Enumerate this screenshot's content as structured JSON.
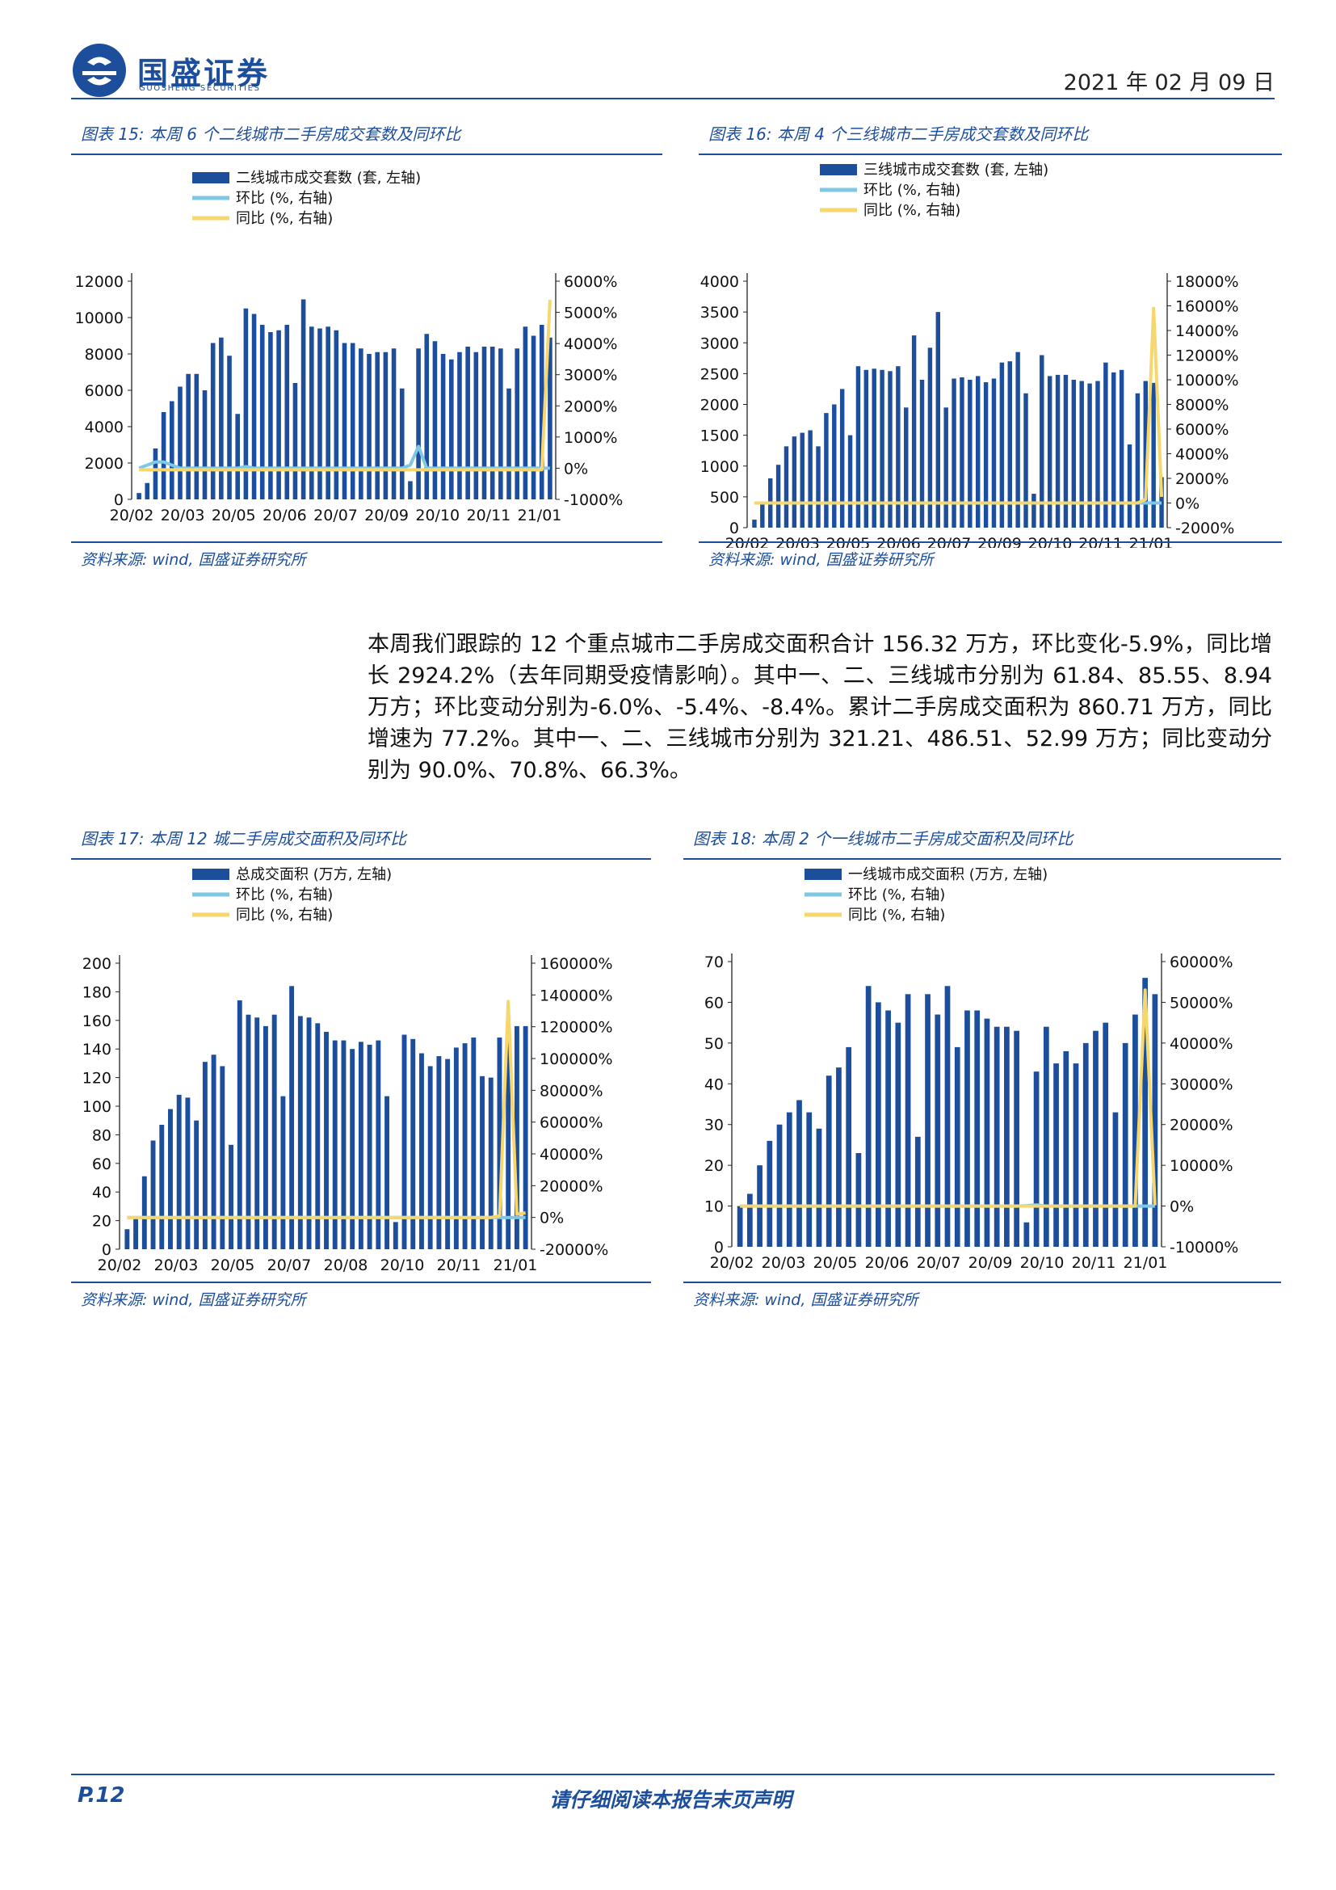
{
  "header": {
    "logo_cn": "国盛证券",
    "logo_en": "GUOSHENG SECURITIES",
    "date": "2021 年 02 月 09 日"
  },
  "colors": {
    "brand": "#1c4e9c",
    "bar": "#1c4e9c",
    "mom_line": "#7ec8e3",
    "yoy_line": "#f5d76e"
  },
  "charts": [
    {
      "title": "图表 15:  本周 6 个二线城市二手房成交套数及同环比",
      "source": "资料来源: wind, 国盛证券研究所",
      "chart_data": {
        "type": "bar",
        "series": [
          {
            "name": "二线城市成交套数 (套, 左轴)",
            "type": "bar",
            "axis": "left",
            "values": [
              350,
              900,
              2800,
              4800,
              5400,
              6200,
              6900,
              6900,
              6000,
              8600,
              8900,
              7900,
              4700,
              10500,
              10200,
              9600,
              9200,
              9300,
              9600,
              6400,
              11000,
              9500,
              9400,
              9500,
              9300,
              8600,
              8600,
              8300,
              8000,
              8100,
              8100,
              8300,
              6100,
              1000,
              8300,
              9100,
              8700,
              8000,
              7700,
              8100,
              8400,
              8100,
              8400,
              8400,
              8300,
              6100,
              8300,
              9500,
              9000,
              9600,
              8900
            ],
            "style_color": "#1c4e9c"
          },
          {
            "name": "环比 (%, 右轴)",
            "type": "line",
            "axis": "right",
            "values": [
              0,
              100,
              200,
              200,
              100,
              0,
              0,
              0,
              0,
              0,
              0,
              0,
              0,
              50,
              0,
              0,
              0,
              0,
              0,
              0,
              0,
              0,
              0,
              0,
              0,
              0,
              0,
              0,
              0,
              0,
              0,
              0,
              0,
              100,
              700,
              0,
              0,
              0,
              0,
              0,
              0,
              0,
              0,
              0,
              0,
              0,
              0,
              0,
              0,
              0,
              0
            ]
          },
          {
            "name": "同比 (%, 右轴)",
            "type": "line",
            "axis": "right",
            "values": [
              -50,
              -50,
              -50,
              -50,
              -50,
              -50,
              -50,
              -50,
              -50,
              -50,
              -50,
              -50,
              -50,
              -50,
              -50,
              -50,
              -50,
              -50,
              -50,
              -50,
              -50,
              -50,
              -50,
              -50,
              -50,
              -50,
              -50,
              -50,
              -50,
              -50,
              -50,
              -50,
              -50,
              -50,
              -50,
              -50,
              -50,
              -50,
              -50,
              -50,
              -50,
              -50,
              -50,
              -50,
              -50,
              -50,
              -50,
              -50,
              -50,
              -50,
              5400
            ]
          }
        ],
        "x_labels": [
          "20/02",
          "20/03",
          "20/05",
          "20/06",
          "20/07",
          "20/09",
          "20/10",
          "20/11",
          "21/01"
        ],
        "left_ticks": [
          "12000",
          "10000",
          "8000",
          "6000",
          "4000",
          "2000",
          "0"
        ],
        "right_ticks": [
          "6000%",
          "5000%",
          "4000%",
          "3000%",
          "2000%",
          "1000%",
          "0%",
          "-1000%"
        ],
        "ylim_left": [
          0,
          12000
        ],
        "ylim_right": [
          -1000,
          6000
        ]
      }
    },
    {
      "title": "图表 16:  本周 4 个三线城市二手房成交套数及同环比",
      "source": "资料来源: wind, 国盛证券研究所",
      "chart_data": {
        "type": "bar",
        "series": [
          {
            "name": "三线城市成交套数 (套, 左轴)",
            "type": "bar",
            "axis": "left",
            "values": [
              130,
              380,
              800,
              1020,
              1320,
              1480,
              1540,
              1580,
              1320,
              1860,
              2000,
              2250,
              1500,
              2620,
              2560,
              2580,
              2560,
              2540,
              2620,
              1950,
              3120,
              2400,
              2920,
              3500,
              1950,
              2420,
              2440,
              2400,
              2460,
              2360,
              2420,
              2680,
              2700,
              2850,
              2180,
              550,
              2800,
              2460,
              2480,
              2480,
              2400,
              2380,
              2340,
              2380,
              2680,
              2520,
              2560,
              1350,
              2180,
              2380,
              2350,
              820
            ],
            "style_color": "#1c4e9c"
          },
          {
            "name": "环比 (%, 右轴)",
            "type": "line",
            "axis": "right",
            "values": [
              0,
              0,
              0,
              0,
              0,
              0,
              0,
              0,
              0,
              0,
              0,
              0,
              0,
              0,
              0,
              0,
              0,
              0,
              0,
              0,
              0,
              0,
              0,
              0,
              0,
              0,
              0,
              0,
              0,
              0,
              0,
              0,
              0,
              0,
              0,
              0,
              0,
              0,
              0,
              0,
              0,
              0,
              0,
              0,
              0,
              0,
              0,
              0,
              0,
              0,
              0,
              0
            ]
          },
          {
            "name": "同比 (%, 右轴)",
            "type": "line",
            "axis": "right",
            "values": [
              0,
              0,
              0,
              0,
              0,
              0,
              0,
              0,
              0,
              0,
              0,
              0,
              0,
              0,
              0,
              0,
              0,
              0,
              0,
              0,
              0,
              0,
              0,
              0,
              0,
              0,
              0,
              0,
              0,
              0,
              0,
              0,
              0,
              0,
              0,
              0,
              0,
              0,
              0,
              0,
              0,
              0,
              0,
              0,
              0,
              0,
              0,
              0,
              0,
              300,
              15800,
              500
            ]
          }
        ],
        "x_labels": [
          "20/02",
          "20/03",
          "20/05",
          "20/06",
          "20/07",
          "20/09",
          "20/10",
          "20/11",
          "21/01"
        ],
        "left_ticks": [
          "4000",
          "3500",
          "3000",
          "2500",
          "2000",
          "1500",
          "1000",
          "500",
          "0"
        ],
        "right_ticks": [
          "18000%",
          "16000%",
          "14000%",
          "12000%",
          "10000%",
          "8000%",
          "6000%",
          "4000%",
          "2000%",
          "0%",
          "-2000%"
        ],
        "ylim_left": [
          0,
          4000
        ],
        "ylim_right": [
          -2000,
          18000
        ]
      }
    },
    {
      "title": "图表 17:  本周 12 城二手房成交面积及同环比",
      "source": "资料来源: wind, 国盛证券研究所",
      "chart_data": {
        "type": "bar",
        "series": [
          {
            "name": "总成交面积 (万方, 左轴)",
            "type": "bar",
            "axis": "left",
            "values": [
              14,
              23,
              51,
              76,
              87,
              98,
              108,
              106,
              90,
              131,
              136,
              128,
              73,
              174,
              164,
              162,
              156,
              164,
              107,
              184,
              163,
              162,
              158,
              152,
              146,
              146,
              140,
              145,
              143,
              146,
              107,
              19,
              150,
              147,
              137,
              128,
              135,
              133,
              141,
              144,
              148,
              121,
              120,
              148,
              149,
              156,
              156
            ],
            "style_color": "#1c4e9c"
          },
          {
            "name": "环比 (%, 右轴)",
            "type": "line",
            "axis": "right",
            "values": [
              0,
              0,
              0,
              0,
              0,
              0,
              0,
              0,
              0,
              0,
              0,
              0,
              0,
              0,
              0,
              0,
              0,
              0,
              0,
              0,
              0,
              0,
              0,
              0,
              0,
              0,
              0,
              0,
              0,
              0,
              0,
              0,
              0,
              0,
              0,
              0,
              0,
              0,
              0,
              0,
              0,
              0,
              0,
              0,
              0,
              0,
              0
            ]
          },
          {
            "name": "同比 (%, 右轴)",
            "type": "line",
            "axis": "right",
            "values": [
              0,
              0,
              0,
              0,
              0,
              0,
              0,
              0,
              0,
              0,
              0,
              0,
              0,
              0,
              0,
              0,
              0,
              0,
              0,
              0,
              0,
              0,
              0,
              0,
              0,
              0,
              0,
              0,
              0,
              0,
              0,
              0,
              0,
              0,
              0,
              0,
              0,
              0,
              0,
              0,
              0,
              0,
              0,
              1000,
              136000,
              2000,
              2900
            ]
          }
        ],
        "x_labels": [
          "20/02",
          "20/03",
          "20/05",
          "20/07",
          "20/08",
          "20/10",
          "20/11",
          "21/01"
        ],
        "left_ticks": [
          "200",
          "180",
          "160",
          "140",
          "120",
          "100",
          "80",
          "60",
          "40",
          "20",
          "0"
        ],
        "right_ticks": [
          "160000%",
          "140000%",
          "120000%",
          "100000%",
          "80000%",
          "60000%",
          "40000%",
          "20000%",
          "0%",
          "-20000%"
        ],
        "ylim_left": [
          0,
          200
        ],
        "ylim_right": [
          -20000,
          160000
        ]
      }
    },
    {
      "title": "图表 18:  本周 2 个一线城市二手房成交面积及同环比",
      "source": "资料来源: wind, 国盛证券研究所",
      "chart_data": {
        "type": "bar",
        "series": [
          {
            "name": "一线城市成交面积 (万方, 左轴)",
            "type": "bar",
            "axis": "left",
            "values": [
              10,
              13,
              20,
              26,
              30,
              33,
              36,
              33,
              29,
              42,
              44,
              49,
              23,
              64,
              60,
              58,
              55,
              62,
              27,
              62,
              57,
              64,
              49,
              58,
              58,
              56,
              54,
              54,
              53,
              6,
              43,
              54,
              45,
              48,
              45,
              50,
              53,
              55,
              33,
              50,
              57,
              66,
              62
            ],
            "style_color": "#1c4e9c"
          },
          {
            "name": "环比 (%, 右轴)",
            "type": "line",
            "axis": "right",
            "values": [
              0,
              0,
              0,
              0,
              0,
              0,
              0,
              0,
              0,
              0,
              0,
              0,
              0,
              0,
              0,
              0,
              0,
              0,
              0,
              0,
              0,
              0,
              0,
              0,
              0,
              0,
              0,
              0,
              0,
              100,
              300,
              0,
              0,
              0,
              0,
              0,
              0,
              0,
              0,
              0,
              0,
              0,
              0
            ]
          },
          {
            "name": "同比 (%, 右轴)",
            "type": "line",
            "axis": "right",
            "values": [
              0,
              0,
              0,
              0,
              0,
              0,
              0,
              0,
              0,
              0,
              0,
              0,
              0,
              0,
              0,
              0,
              0,
              0,
              0,
              0,
              0,
              0,
              0,
              0,
              0,
              0,
              0,
              0,
              0,
              0,
              0,
              0,
              0,
              0,
              0,
              0,
              0,
              0,
              0,
              0,
              0,
              53000,
              200
            ]
          }
        ],
        "x_labels": [
          "20/02",
          "20/03",
          "20/05",
          "20/06",
          "20/07",
          "20/09",
          "20/10",
          "20/11",
          "21/01"
        ],
        "left_ticks": [
          "70",
          "60",
          "50",
          "40",
          "30",
          "20",
          "10",
          "0"
        ],
        "right_ticks": [
          "60000%",
          "50000%",
          "40000%",
          "30000%",
          "20000%",
          "10000%",
          "0%",
          "-10000%"
        ],
        "ylim_left": [
          0,
          70
        ],
        "ylim_right": [
          -10000,
          60000
        ]
      }
    }
  ],
  "body": {
    "paragraph": "本周我们跟踪的 12 个重点城市二手房成交面积合计 156.32 万方，环比变化-5.9%，同比增长 2924.2%（去年同期受疫情影响）。其中一、二、三线城市分别为 61.84、85.55、8.94 万方；环比变动分别为-6.0%、-5.4%、-8.4%。累计二手房成交面积为 860.71 万方，同比增速为 77.2%。其中一、二、三线城市分别为 321.21、486.51、52.99 万方；同比变动分别为 90.0%、70.8%、66.3%。"
  },
  "footer": {
    "page": "P.12",
    "disclaimer": "请仔细阅读本报告末页声明"
  }
}
